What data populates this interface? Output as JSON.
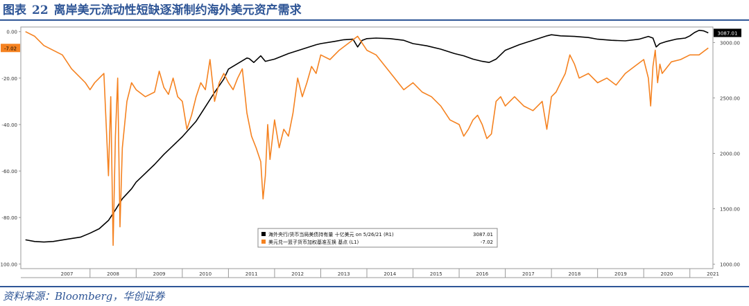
{
  "figure": {
    "label": "图表",
    "number": "22",
    "title": "离岸美元流动性短缺逐渐制约海外美元资产需求",
    "source": "资料来源：Bloomberg，华创证券"
  },
  "chart_data": {
    "type": "line",
    "xlim": [
      2006.5,
      2021.5
    ],
    "x_ticks": [
      "2007",
      "2008",
      "2009",
      "2010",
      "2011",
      "2012",
      "2013",
      "2014",
      "2015",
      "2016",
      "2017",
      "2018",
      "2019",
      "2020",
      "2021"
    ],
    "left_axis": {
      "ylim": [
        -102,
        2
      ],
      "ticks": [
        0,
        -20,
        -40,
        -60,
        -80,
        -100
      ],
      "tick_labels": [
        "0.00",
        "-20.00",
        "-40.00",
        "-60.00",
        "-80.00",
        "-100.00"
      ]
    },
    "right_axis": {
      "ylim": [
        960,
        3140
      ],
      "ticks": [
        3000,
        2500,
        2000,
        1500,
        1000
      ],
      "tick_labels": [
        "3000.00",
        "2500.00",
        "2000.00",
        "1500.00",
        "1000.00"
      ]
    },
    "grid": false,
    "legend_position": "bottom-center",
    "colors": {
      "black_series": "#000000",
      "orange_series": "#f58220",
      "frame": "#999999"
    },
    "series": [
      {
        "name": "海外央行/货币当局美债持有量 十亿美元 on 5/26/21 (R1)",
        "axis": "right",
        "color": "#000000",
        "last_value_text": "3087.01",
        "x": [
          2006.6,
          2006.8,
          2007.0,
          2007.2,
          2007.5,
          2007.8,
          2008.0,
          2008.2,
          2008.4,
          2008.55,
          2008.7,
          2008.9,
          2009.0,
          2009.2,
          2009.4,
          2009.6,
          2009.8,
          2010.0,
          2010.3,
          2010.5,
          2010.7,
          2010.9,
          2011.0,
          2011.2,
          2011.4,
          2011.45,
          2011.55,
          2011.7,
          2011.8,
          2012.0,
          2012.3,
          2012.6,
          2012.9,
          2013.0,
          2013.3,
          2013.5,
          2013.7,
          2013.8,
          2013.9,
          2014.0,
          2014.2,
          2014.5,
          2014.8,
          2015.0,
          2015.3,
          2015.6,
          2015.9,
          2016.1,
          2016.3,
          2016.5,
          2016.65,
          2016.8,
          2017.0,
          2017.3,
          2017.6,
          2017.9,
          2018.0,
          2018.2,
          2018.5,
          2018.8,
          2019.0,
          2019.3,
          2019.6,
          2019.9,
          2020.1,
          2020.2,
          2020.27,
          2020.35,
          2020.5,
          2020.7,
          2020.9,
          2021.0,
          2021.1,
          2021.2,
          2021.3,
          2021.4
        ],
        "values": [
          1220,
          1205,
          1200,
          1205,
          1225,
          1245,
          1280,
          1320,
          1395,
          1490,
          1590,
          1680,
          1740,
          1820,
          1900,
          1990,
          2070,
          2150,
          2290,
          2420,
          2550,
          2670,
          2760,
          2810,
          2860,
          2855,
          2820,
          2880,
          2830,
          2850,
          2900,
          2940,
          2980,
          2990,
          3010,
          3025,
          3030,
          2960,
          3020,
          3035,
          3040,
          3035,
          3020,
          2990,
          2970,
          2940,
          2900,
          2880,
          2850,
          2830,
          2820,
          2850,
          2930,
          2980,
          3020,
          3060,
          3070,
          3060,
          3055,
          3045,
          3030,
          3020,
          3015,
          3030,
          3055,
          3040,
          2960,
          2990,
          3010,
          3030,
          3040,
          3060,
          3090,
          3110,
          3105,
          3087
        ]
      },
      {
        "name": "美元兑一篮子货币加权基准互换 基点 (L1)",
        "axis": "left",
        "color": "#f58220",
        "last_value_text": "-7.02",
        "x": [
          2006.6,
          2006.8,
          2007.0,
          2007.2,
          2007.4,
          2007.6,
          2007.8,
          2007.9,
          2008.0,
          2008.1,
          2008.2,
          2008.3,
          2008.4,
          2008.45,
          2008.5,
          2008.55,
          2008.6,
          2008.65,
          2008.7,
          2008.8,
          2008.9,
          2009.0,
          2009.2,
          2009.4,
          2009.5,
          2009.6,
          2009.7,
          2009.8,
          2009.9,
          2010.0,
          2010.1,
          2010.2,
          2010.3,
          2010.4,
          2010.5,
          2010.6,
          2010.7,
          2010.8,
          2010.9,
          2011.0,
          2011.1,
          2011.2,
          2011.3,
          2011.4,
          2011.5,
          2011.6,
          2011.7,
          2011.75,
          2011.8,
          2011.85,
          2011.9,
          2012.0,
          2012.1,
          2012.2,
          2012.3,
          2012.4,
          2012.5,
          2012.6,
          2012.7,
          2012.8,
          2012.9,
          2013.0,
          2013.2,
          2013.4,
          2013.6,
          2013.8,
          2014.0,
          2014.2,
          2014.4,
          2014.6,
          2014.8,
          2015.0,
          2015.2,
          2015.4,
          2015.6,
          2015.8,
          2016.0,
          2016.1,
          2016.2,
          2016.3,
          2016.4,
          2016.5,
          2016.6,
          2016.7,
          2016.8,
          2016.9,
          2017.0,
          2017.2,
          2017.4,
          2017.6,
          2017.8,
          2017.9,
          2018.0,
          2018.1,
          2018.2,
          2018.3,
          2018.4,
          2018.5,
          2018.6,
          2018.8,
          2019.0,
          2019.2,
          2019.4,
          2019.6,
          2019.8,
          2020.0,
          2020.1,
          2020.15,
          2020.2,
          2020.25,
          2020.3,
          2020.35,
          2020.4,
          2020.6,
          2020.8,
          2021.0,
          2021.2,
          2021.4
        ],
        "values": [
          0,
          -2,
          -6,
          -8,
          -10,
          -16,
          -20,
          -22,
          -25,
          -22,
          -20,
          -18,
          -62,
          -28,
          -92,
          -45,
          -20,
          -84,
          -50,
          -30,
          -22,
          -25,
          -28,
          -26,
          -17,
          -24,
          -27,
          -20,
          -28,
          -30,
          -42,
          -36,
          -28,
          -22,
          -25,
          -12,
          -30,
          -22,
          -18,
          -22,
          -25,
          -20,
          -16,
          -35,
          -45,
          -50,
          -56,
          -72,
          -62,
          -40,
          -55,
          -38,
          -50,
          -42,
          -45,
          -35,
          -20,
          -28,
          -22,
          -15,
          -18,
          -10,
          -12,
          -8,
          -5,
          -2,
          -8,
          -10,
          -15,
          -20,
          -25,
          -22,
          -26,
          -28,
          -32,
          -38,
          -40,
          -45,
          -42,
          -38,
          -36,
          -40,
          -46,
          -44,
          -30,
          -28,
          -32,
          -28,
          -32,
          -34,
          -30,
          -42,
          -28,
          -26,
          -22,
          -18,
          -10,
          -14,
          -20,
          -18,
          -22,
          -20,
          -23,
          -18,
          -15,
          -12,
          -20,
          -32,
          -15,
          -8,
          -22,
          -14,
          -18,
          -13,
          -12,
          -10,
          -10,
          -7.02
        ]
      }
    ]
  }
}
